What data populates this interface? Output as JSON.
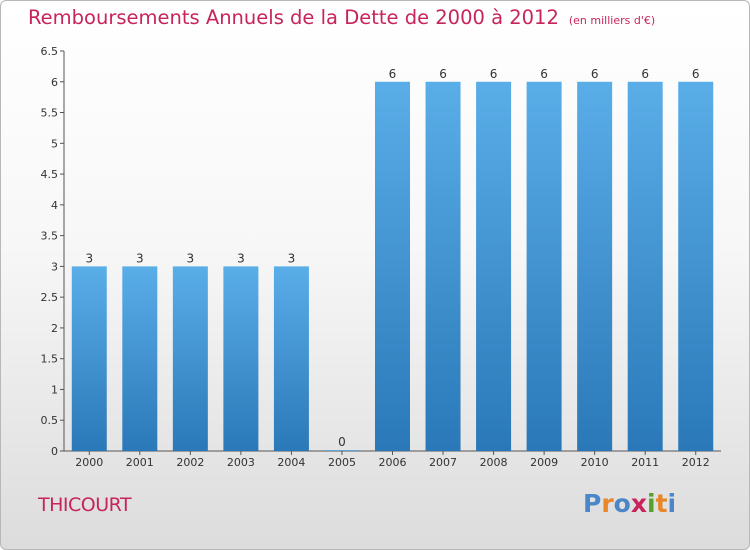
{
  "title": "Remboursements Annuels de la Dette de 2000 à 2012",
  "unit": "(en milliers d'€)",
  "commune": "THICOURT",
  "logo": {
    "text": "Proxiti",
    "letter_colors": [
      "#4a86c8",
      "#e8862a",
      "#4a86c8",
      "#c8245c",
      "#5aa02c",
      "#e8862a",
      "#4a86c8"
    ]
  },
  "colors": {
    "title": "#c8245c",
    "bar_light": "#5aaee8",
    "bar_dark": "#2a78b8"
  },
  "chart_data": {
    "type": "bar",
    "categories": [
      "2000",
      "2001",
      "2002",
      "2003",
      "2004",
      "2005",
      "2006",
      "2007",
      "2008",
      "2009",
      "2010",
      "2011",
      "2012"
    ],
    "values": [
      3,
      3,
      3,
      3,
      3,
      0,
      6,
      6,
      6,
      6,
      6,
      6,
      6
    ],
    "data_labels": [
      "3",
      "3",
      "3",
      "3",
      "3",
      "0",
      "6",
      "6",
      "6",
      "6",
      "6",
      "6",
      "6"
    ],
    "ylim": [
      0,
      6.5
    ],
    "yticks": [
      0,
      0.5,
      1,
      1.5,
      2,
      2.5,
      3,
      3.5,
      4,
      4.5,
      5,
      5.5,
      6,
      6.5
    ],
    "ytick_labels": [
      "0",
      "0.5",
      "1",
      "1.5",
      "2",
      "2.5",
      "3",
      "3.5",
      "4",
      "4.5",
      "5",
      "5.5",
      "6",
      "6.5"
    ],
    "grid": false,
    "title": "Remboursements Annuels de la Dette de 2000 à 2012",
    "xlabel": "",
    "ylabel": ""
  }
}
